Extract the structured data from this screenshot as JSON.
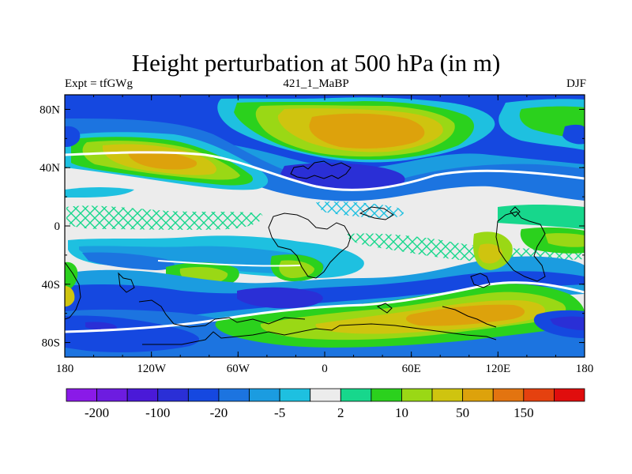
{
  "title": "Height perturbation at 500 hPa (in m)",
  "left_string": "Expt = tfGWg",
  "center_string": "421_1_MaBP",
  "right_string": "DJF",
  "chart_data": {
    "type": "heatmap",
    "projection": "cylindrical-equidistant",
    "variable": "500 hPa geopotential height perturbation",
    "units": "m",
    "xlim": [
      -180,
      180
    ],
    "ylim": [
      -90,
      90
    ],
    "xticks": [
      -180,
      -120,
      -60,
      0,
      60,
      120,
      180
    ],
    "xtick_labels": [
      "180",
      "120W",
      "60W",
      "0",
      "60E",
      "120E",
      "180"
    ],
    "yticks": [
      80,
      40,
      0,
      -40,
      -80
    ],
    "ytick_labels": [
      "80N",
      "40N",
      "0",
      "40S",
      "80S"
    ],
    "colorbar": {
      "colors": [
        "#8a1ae8",
        "#6d1ce0",
        "#4a19d8",
        "#2a2fd6",
        "#1548e0",
        "#1c74e0",
        "#1b9ce0",
        "#1ec0e0",
        "#ececec",
        "#17d78c",
        "#2bd11d",
        "#9ad815",
        "#cfc40f",
        "#dda20c",
        "#e37410",
        "#e5410f",
        "#e00d0d"
      ],
      "labeled_levels": [
        "-200",
        "-100",
        "-20",
        "-5",
        "2",
        "10",
        "50",
        "150"
      ]
    },
    "features": [
      {
        "lon": 45,
        "lat": 65,
        "value": 50,
        "kind": "high"
      },
      {
        "lon": -125,
        "lat": 45,
        "value": 50,
        "kind": "high"
      },
      {
        "lon": 30,
        "lat": 37,
        "value": -100,
        "kind": "low"
      },
      {
        "lon": -40,
        "lat": -50,
        "value": -100,
        "kind": "low"
      },
      {
        "lon": 120,
        "lat": -50,
        "value": 50,
        "kind": "high"
      },
      {
        "lon": 178,
        "lat": -65,
        "value": -100,
        "kind": "low"
      }
    ]
  }
}
